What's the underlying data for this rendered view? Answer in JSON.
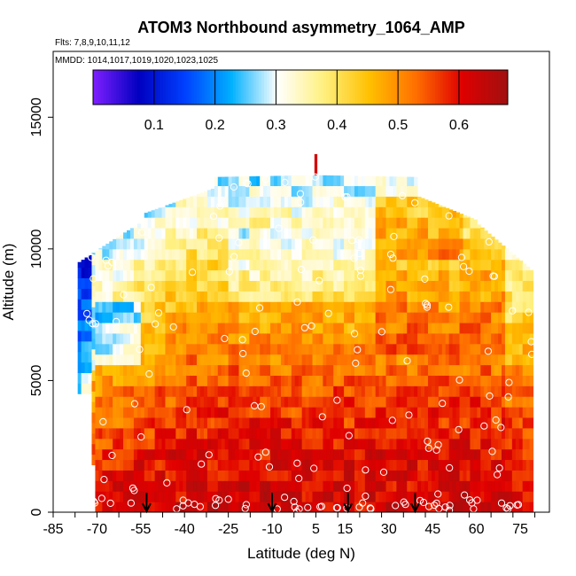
{
  "chart_data": {
    "type": "heatmap",
    "title": "ATOM3 Northbound asymmetry_1064_AMP",
    "subtitle_flights": "Flts: 7,8,9,10,11,12",
    "subtitle_dates": "MMDD: 1014,1017,1019,1020,1023,1025",
    "xlabel": "Latitude (deg N)",
    "ylabel": "Altitude (m)",
    "xlim": [
      -85,
      85
    ],
    "ylim": [
      0,
      17500
    ],
    "x_ticks": [
      -85,
      -70,
      -55,
      -40,
      -25,
      -10,
      5,
      15,
      30,
      45,
      60,
      75
    ],
    "y_ticks": [
      0,
      5000,
      10000,
      15000
    ],
    "colorbar": {
      "min": 0.0,
      "max": 0.68,
      "tick_values": [
        0.1,
        0.2,
        0.3,
        0.4,
        0.5,
        0.6
      ],
      "tick_labels": [
        "0.1",
        "0.2",
        "0.3",
        "0.4",
        "0.5",
        "0.6"
      ],
      "colors": [
        "#7f1fff",
        "#0000c0",
        "#0040ff",
        "#00b0ff",
        "#ffffff",
        "#fff080",
        "#ffc000",
        "#ff7000",
        "#e00000",
        "#a01010"
      ]
    },
    "profile_arrows_lat": [
      -53,
      -10,
      16,
      39
    ],
    "grid": false,
    "legend": "colorbar top inside"
  }
}
